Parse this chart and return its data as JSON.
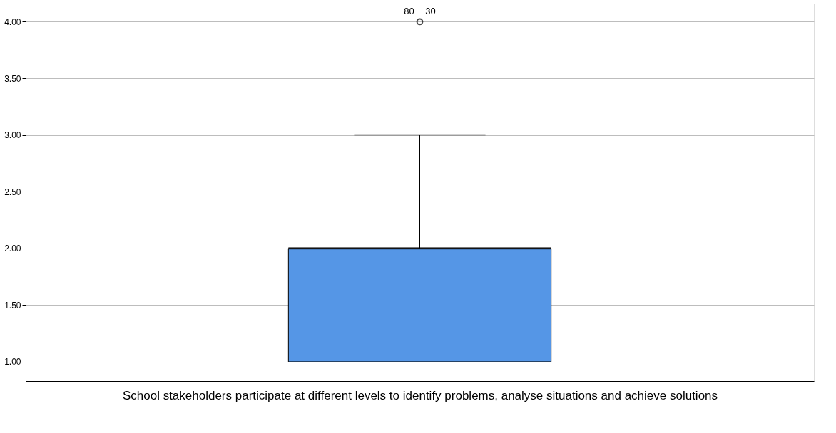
{
  "chart_data": {
    "type": "box",
    "xlabel": "School stakeholders participate at different levels to identify problems, analyse situations and achieve solutions",
    "categories": [
      null
    ],
    "boxes": [
      {
        "low": 1,
        "q1": 1,
        "median": 2,
        "q3": 2,
        "high": 3,
        "outliers": [
          4
        ]
      }
    ],
    "color": "#5596e6",
    "ylim": [
      0.83,
      4.16
    ],
    "yticks": [
      {
        "value": 1,
        "label": "1.00"
      },
      {
        "value": 1.5,
        "label": "1.50"
      },
      {
        "value": 2,
        "label": "2.00"
      },
      {
        "value": 2.5,
        "label": "2.50"
      },
      {
        "value": 3,
        "label": "3.00"
      },
      {
        "value": 3.5,
        "label": "3.50"
      },
      {
        "value": 4,
        "label": "4.00"
      }
    ],
    "grid": "y",
    "annotations": [
      "80",
      "30"
    ]
  }
}
